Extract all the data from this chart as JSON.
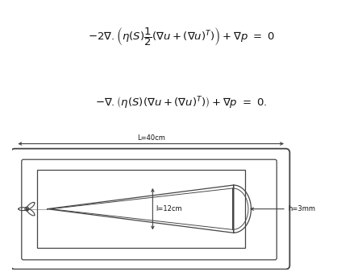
{
  "bg_color": "#ffffff",
  "line_color": "#444444",
  "label_L": "L=40cm",
  "label_l": "l=12cm",
  "label_h": "h=3mm",
  "eq1_parts": {
    "prefix": "$-2\\nabla.$",
    "body": "$\\left(\\eta(S)\\dfrac{1}{2}\\left(\\nabla u+(\\nabla u)^T\\right)\\right)+\\nabla p \\ = \\ 0$"
  },
  "eq2_parts": {
    "prefix": "$-\\nabla.$",
    "body": "$\\left(\\eta(S)\\left(\\nabla u+(\\nabla u)^T\\right)\\right)+\\nabla p \\ = \\ 0.$"
  },
  "figsize": [
    4.49,
    3.38
  ],
  "dpi": 100
}
